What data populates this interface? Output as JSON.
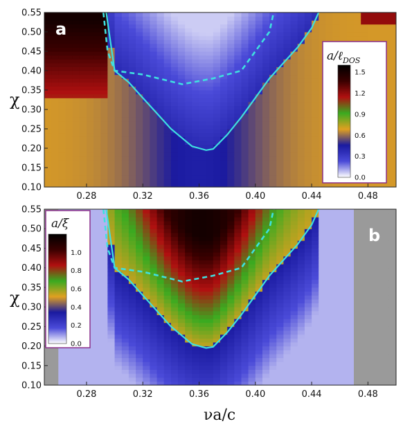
{
  "chart_data": [
    {
      "type": "heatmap",
      "panel_label": "a",
      "ylabel": "χ",
      "xlabel": "",
      "xlim": [
        0.25,
        0.5
      ],
      "ylim": [
        0.1,
        0.55
      ],
      "xticks": [
        "0.28",
        "0.32",
        "0.36",
        "0.40",
        "0.44",
        "0.48"
      ],
      "xtick_values": [
        0.28,
        0.32,
        0.36,
        0.4,
        0.44,
        0.48
      ],
      "yticks": [
        "0.10",
        "0.15",
        "0.20",
        "0.25",
        "0.30",
        "0.35",
        "0.40",
        "0.45",
        "0.50",
        "0.55"
      ],
      "ytick_values": [
        0.1,
        0.15,
        0.2,
        0.25,
        0.3,
        0.35,
        0.4,
        0.45,
        0.5,
        0.55
      ],
      "colorbar": {
        "title": "a/ℓ_DOS",
        "ticks": [
          "0.0",
          "0.3",
          "0.6",
          "0.9",
          "1.2",
          "1.5"
        ],
        "tick_values": [
          0.0,
          0.3,
          0.6,
          0.9,
          1.2,
          1.5
        ],
        "range": [
          0.0,
          1.6
        ],
        "placement": "right"
      },
      "solid_contour": {
        "x": [
          0.294,
          0.3,
          0.31,
          0.32,
          0.33,
          0.34,
          0.35,
          0.355,
          0.36,
          0.365,
          0.37,
          0.38,
          0.39,
          0.4,
          0.41,
          0.42,
          0.43,
          0.44,
          0.445
        ],
        "y": [
          0.55,
          0.4,
          0.37,
          0.33,
          0.29,
          0.25,
          0.22,
          0.205,
          0.2,
          0.195,
          0.198,
          0.235,
          0.28,
          0.33,
          0.38,
          0.42,
          0.46,
          0.51,
          0.55
        ]
      },
      "dashed_contour": {
        "x": [
          0.292,
          0.295,
          0.3,
          0.32,
          0.348,
          0.37,
          0.39,
          0.4,
          0.41,
          0.413
        ],
        "y": [
          0.55,
          0.45,
          0.4,
          0.39,
          0.365,
          0.38,
          0.4,
          0.45,
          0.5,
          0.55
        ]
      }
    },
    {
      "type": "heatmap",
      "panel_label": "b",
      "ylabel": "χ",
      "xlabel": "νa/c",
      "xlim": [
        0.25,
        0.5
      ],
      "ylim": [
        0.1,
        0.55
      ],
      "xticks": [
        "0.28",
        "0.32",
        "0.36",
        "0.40",
        "0.44",
        "0.48"
      ],
      "xtick_values": [
        0.28,
        0.32,
        0.36,
        0.4,
        0.44,
        0.48
      ],
      "yticks": [
        "0.10",
        "0.15",
        "0.20",
        "0.25",
        "0.30",
        "0.35",
        "0.40",
        "0.45",
        "0.50",
        "0.55"
      ],
      "ytick_values": [
        0.1,
        0.15,
        0.2,
        0.25,
        0.3,
        0.35,
        0.4,
        0.45,
        0.5,
        0.55
      ],
      "colorbar": {
        "title": "a/ξ",
        "ticks": [
          "0.0",
          "0.2",
          "0.4",
          "0.6",
          "0.8",
          "1.0"
        ],
        "tick_values": [
          0.0,
          0.2,
          0.4,
          0.6,
          0.8,
          1.0
        ],
        "range": [
          0.0,
          1.2
        ],
        "placement": "left"
      },
      "solid_contour": {
        "x": [
          0.294,
          0.3,
          0.31,
          0.32,
          0.33,
          0.34,
          0.35,
          0.355,
          0.36,
          0.365,
          0.37,
          0.38,
          0.39,
          0.4,
          0.41,
          0.42,
          0.43,
          0.44,
          0.445
        ],
        "y": [
          0.55,
          0.4,
          0.37,
          0.33,
          0.29,
          0.25,
          0.22,
          0.205,
          0.2,
          0.195,
          0.198,
          0.235,
          0.28,
          0.33,
          0.38,
          0.42,
          0.46,
          0.51,
          0.55
        ]
      },
      "dashed_contour": {
        "x": [
          0.292,
          0.295,
          0.3,
          0.32,
          0.348,
          0.37,
          0.39,
          0.4,
          0.41,
          0.413
        ],
        "y": [
          0.55,
          0.45,
          0.4,
          0.39,
          0.365,
          0.38,
          0.4,
          0.45,
          0.5,
          0.55
        ]
      }
    }
  ],
  "colors": {
    "contour": "#3fe0e0",
    "no_data": "#9a9a9a",
    "frame": "#8a2f8a"
  },
  "colormap_stops": [
    "#ffffff",
    "#4a4ad8",
    "#1a1aa0",
    "#e0a020",
    "#3aaa20",
    "#b01010",
    "#3a0000",
    "#000000"
  ]
}
